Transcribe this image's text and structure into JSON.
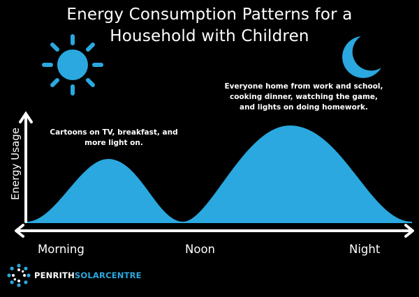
{
  "title_lines": [
    "Energy Consumption Patterns for a",
    "Household with Children"
  ],
  "y_axis_label": "Energy Usage",
  "x_axis_ticks": [
    "Morning",
    "Noon",
    "Night"
  ],
  "annotations": {
    "morning": "Cartoons on TV, breakfast, and more light on.",
    "evening": "Everyone home from work and school, cooking dinner, watching the game, and lights on doing homework."
  },
  "icons": {
    "sun": "sun-icon",
    "moon": "crescent-moon-icon",
    "logo": "dotted-circle-logo-icon"
  },
  "brand": {
    "name_part1": "PENRITH",
    "name_part2": "SOLARCENTRE"
  },
  "colors": {
    "background": "#000000",
    "fill": "#2aa8df",
    "text": "#ffffff",
    "axis": "#ffffff"
  }
}
